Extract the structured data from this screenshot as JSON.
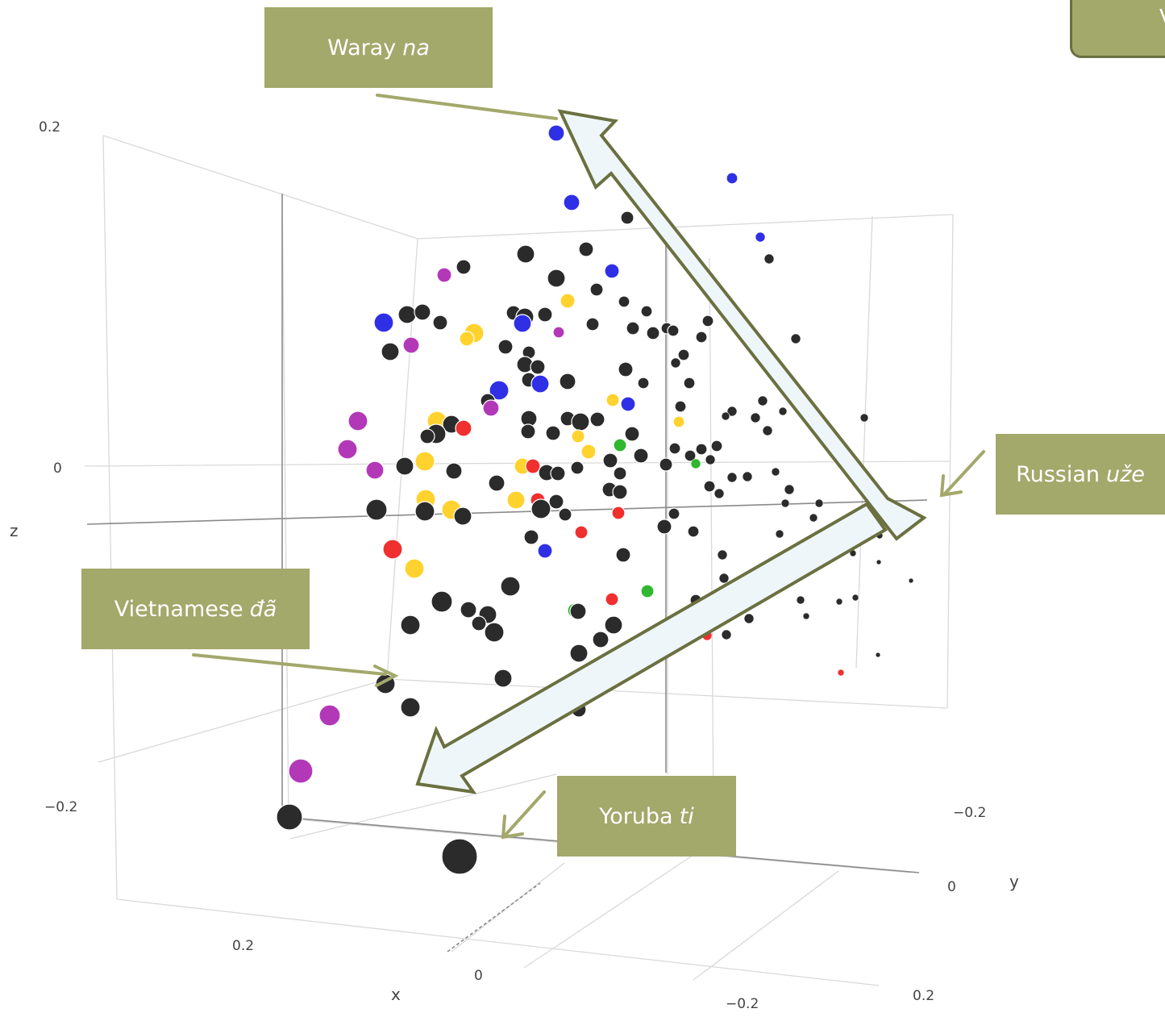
{
  "chart_data": {
    "type": "scatter",
    "axes": {
      "x": {
        "label": "x",
        "ticks": [
          "0.2",
          "0",
          "−0.2"
        ]
      },
      "y": {
        "label": "y",
        "ticks": [
          "−0.2",
          "0",
          "0.2"
        ]
      },
      "z": {
        "label": "z",
        "ticks": [
          "0.2",
          "0",
          "−0.2"
        ]
      }
    },
    "grid": true,
    "marker_colors": [
      "#2b2b2b",
      "#2f2fe6",
      "#b338b8",
      "#ffd22e",
      "#f02f2f",
      "#2fb82f"
    ],
    "arrows": [
      {
        "from": "Russian uže",
        "to": "Waray na"
      },
      {
        "from": "Russian uže",
        "to": "Yoruba ti"
      }
    ]
  },
  "callouts": {
    "waray": {
      "name": "Waray",
      "word": "na"
    },
    "russian": {
      "name": "Russian",
      "word": "uže"
    },
    "vietnamese": {
      "name": "Vietnamese",
      "word": "đã"
    },
    "yoruba": {
      "name": "Yoruba",
      "word": "ti"
    },
    "corner": {
      "text": "V"
    }
  }
}
